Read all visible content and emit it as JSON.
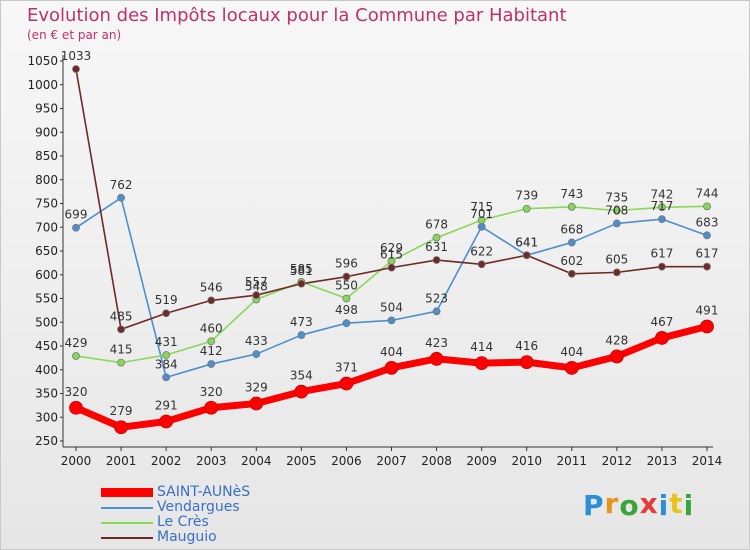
{
  "header": {
    "title": "Evolution des Impôts locaux pour la Commune par Habitant",
    "subtitle": "(en € et par an)"
  },
  "logo": {
    "text": "Proxiti",
    "colors": [
      "#2a8fd8",
      "#e8941a",
      "#3aa63a",
      "#e83a3a",
      "#2a8fd8",
      "#e8c21a",
      "#3aa63a"
    ]
  },
  "chart_data": {
    "type": "line",
    "title": "Evolution des Impôts locaux pour la Commune par Habitant",
    "subtitle": "(en € et par an)",
    "xlabel": "",
    "ylabel": "",
    "x": [
      "2000",
      "2001",
      "2002",
      "2003",
      "2004",
      "2005",
      "2006",
      "2007",
      "2008",
      "2009",
      "2010",
      "2011",
      "2012",
      "2013",
      "2014"
    ],
    "ylim": [
      250,
      1050
    ],
    "yticks": [
      250,
      300,
      350,
      400,
      450,
      500,
      550,
      600,
      650,
      700,
      750,
      800,
      850,
      900,
      950,
      1000,
      1050
    ],
    "grid": false,
    "legend_position": "bottom-left",
    "series": [
      {
        "name": "SAINT-AUNèS",
        "color": "#ff0000",
        "values": [
          320,
          279,
          291,
          320,
          329,
          354,
          371,
          404,
          423,
          414,
          416,
          404,
          428,
          467,
          491
        ]
      },
      {
        "name": "Vendargues",
        "color": "#4a90d0",
        "values": [
          699,
          762,
          384,
          412,
          433,
          473,
          498,
          504,
          523,
          701,
          641,
          668,
          708,
          717,
          683
        ]
      },
      {
        "name": "Le Crès",
        "color": "#88d858",
        "values": [
          429,
          415,
          431,
          460,
          548,
          585,
          550,
          629,
          678,
          715,
          739,
          743,
          735,
          742,
          744
        ]
      },
      {
        "name": "Mauguio",
        "color": "#702828",
        "values": [
          1033,
          485,
          519,
          546,
          557,
          581,
          596,
          615,
          631,
          622,
          641,
          602,
          605,
          617,
          617
        ]
      }
    ]
  }
}
